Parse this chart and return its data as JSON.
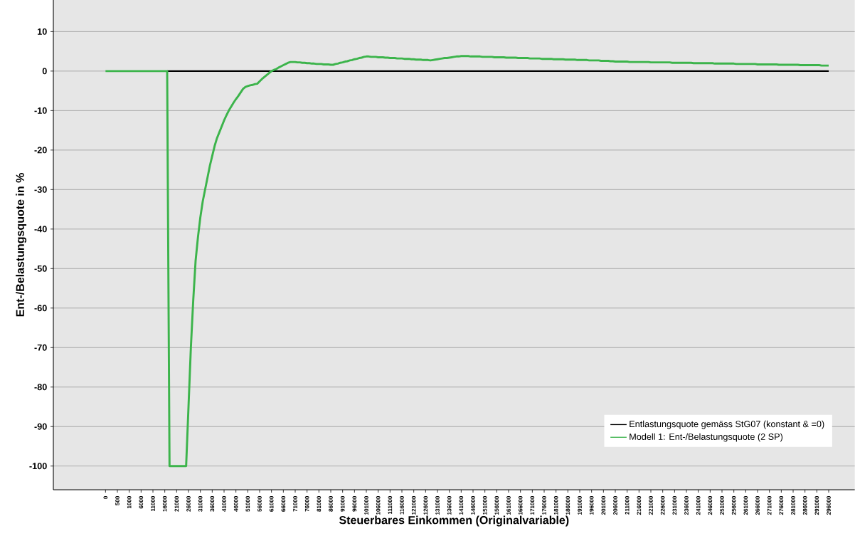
{
  "chart_data": {
    "type": "line",
    "xlabel": "Steuerbares Einkommen (Originalvariable)",
    "ylabel": "Ent-/Belastungsquote in %",
    "categories": [
      "0",
      null,
      null,
      null,
      null,
      "500",
      null,
      null,
      null,
      null,
      "1000",
      null,
      null,
      null,
      null,
      "6000",
      null,
      null,
      null,
      null,
      "11000",
      null,
      null,
      null,
      null,
      "16000",
      null,
      null,
      null,
      null,
      "21000",
      null,
      null,
      null,
      null,
      "26000",
      null,
      null,
      null,
      null,
      "31000",
      null,
      null,
      null,
      null,
      "36000",
      null,
      null,
      null,
      null,
      "41000",
      null,
      null,
      null,
      null,
      "46000",
      null,
      null,
      null,
      null,
      "51000",
      null,
      null,
      null,
      null,
      "56000",
      null,
      null,
      null,
      null,
      "61000",
      null,
      null,
      null,
      null,
      "66000",
      null,
      null,
      null,
      null,
      "71000",
      null,
      null,
      null,
      null,
      "76000",
      null,
      null,
      null,
      null,
      "81000",
      null,
      null,
      null,
      null,
      "86000",
      null,
      null,
      null,
      null,
      "91000",
      null,
      null,
      null,
      null,
      "96000",
      null,
      null,
      null,
      null,
      "101000",
      null,
      null,
      null,
      null,
      "106000",
      null,
      null,
      null,
      null,
      "111000",
      null,
      null,
      null,
      null,
      "116000",
      null,
      null,
      null,
      null,
      "121000",
      null,
      null,
      null,
      null,
      "126000",
      null,
      null,
      null,
      null,
      "131000",
      null,
      null,
      null,
      null,
      "136000",
      null,
      null,
      null,
      null,
      "141000",
      null,
      null,
      null,
      null,
      "146000",
      null,
      null,
      null,
      null,
      "151000",
      null,
      null,
      null,
      null,
      "156000",
      null,
      null,
      null,
      null,
      "161000",
      null,
      null,
      null,
      null,
      "166000",
      null,
      null,
      null,
      null,
      "171000",
      null,
      null,
      null,
      null,
      "176000",
      null,
      null,
      null,
      null,
      "181000",
      null,
      null,
      null,
      null,
      "186000",
      null,
      null,
      null,
      null,
      "191000",
      null,
      null,
      null,
      null,
      "196000",
      null,
      null,
      null,
      null,
      "201000",
      null,
      null,
      null,
      null,
      "206000",
      null,
      null,
      null,
      null,
      "211000",
      null,
      null,
      null,
      null,
      "216000",
      null,
      null,
      null,
      null,
      "221000",
      null,
      null,
      null,
      null,
      "226000",
      null,
      null,
      null,
      null,
      "231000",
      null,
      null,
      null,
      null,
      "236000",
      null,
      null,
      null,
      null,
      "241000",
      null,
      null,
      null,
      null,
      "246000",
      null,
      null,
      null,
      null,
      "251000",
      null,
      null,
      null,
      null,
      "256000",
      null,
      null,
      null,
      null,
      "261000",
      null,
      null,
      null,
      null,
      "266000",
      null,
      null,
      null,
      null,
      "271000",
      null,
      null,
      null,
      null,
      "276000",
      null,
      null,
      null,
      null,
      "281000",
      null,
      null,
      null,
      null,
      "286000",
      null,
      null,
      null,
      null,
      "291000",
      null,
      null,
      null,
      null,
      "296000"
    ],
    "series": [
      {
        "name": "Entlastungsquote gemäss StG07 (konstant & =0)",
        "color": "#000000",
        "values": [
          null,
          null,
          null,
          null,
          null,
          null,
          null,
          null,
          null,
          null,
          null,
          null,
          null,
          null,
          null,
          null,
          null,
          null,
          null,
          null,
          null,
          null,
          null,
          null,
          null,
          null,
          0,
          0,
          0,
          0,
          0,
          0,
          0,
          0,
          0,
          0,
          0,
          0,
          0,
          0,
          0,
          0,
          0,
          0,
          0,
          0,
          0,
          0,
          0,
          0,
          0,
          0,
          0,
          0,
          0,
          0,
          0,
          0,
          0,
          0,
          0,
          0,
          0,
          0,
          0,
          0,
          0,
          0,
          0,
          0,
          0,
          0,
          0,
          0,
          0,
          0,
          0,
          0,
          0,
          0,
          0,
          0,
          0,
          0,
          0,
          0,
          0,
          0,
          0,
          0,
          0,
          0,
          0,
          0,
          0,
          0,
          0,
          0,
          0,
          0,
          0,
          0,
          0,
          0,
          0,
          0,
          0,
          0,
          0,
          0,
          0,
          0,
          0,
          0,
          0,
          0,
          0,
          0,
          0,
          0,
          0,
          0,
          0,
          0,
          0,
          0,
          0,
          0,
          0,
          0,
          0,
          0,
          0,
          0,
          0,
          0,
          0,
          0,
          0,
          0,
          0,
          0,
          0,
          0,
          0,
          0,
          0,
          0,
          0,
          0,
          0,
          0,
          0,
          0,
          0,
          0,
          0,
          0,
          0,
          0,
          0,
          0,
          0,
          0,
          0,
          0,
          0,
          0,
          0,
          0,
          0,
          0,
          0,
          0,
          0,
          0,
          0,
          0,
          0,
          0,
          0,
          0,
          0,
          0,
          0,
          0,
          0,
          0,
          0,
          0,
          0,
          0,
          0,
          0,
          0,
          0,
          0,
          0,
          0,
          0,
          0,
          0,
          0,
          0,
          0,
          0,
          0,
          0,
          0,
          0,
          0,
          0,
          0,
          0,
          0,
          0,
          0,
          0,
          0,
          0,
          0,
          0,
          0,
          0,
          0,
          0,
          0,
          0,
          0,
          0,
          0,
          0,
          0,
          0,
          0,
          0,
          0,
          0,
          0,
          0,
          0,
          0,
          0,
          0,
          0,
          0,
          0,
          0,
          0,
          0,
          0,
          0,
          0,
          0,
          0,
          0,
          0,
          0,
          0,
          0,
          0,
          0,
          0,
          0,
          0,
          0,
          0,
          0,
          0,
          0,
          0,
          0,
          0,
          0,
          0,
          0,
          0,
          0,
          0,
          0,
          0,
          0,
          0,
          0,
          0,
          0,
          0,
          0,
          0,
          0,
          0,
          0,
          0,
          0,
          0,
          0,
          0,
          0,
          0,
          0,
          0,
          0,
          0,
          0,
          0,
          0
        ]
      },
      {
        "name": "Modell 1: Ent-/Belastungsquote (2 SP)",
        "color": "#3cb44b",
        "values": [
          0,
          0,
          0,
          0,
          0,
          0,
          0,
          0,
          0,
          0,
          0,
          0,
          0,
          0,
          0,
          0,
          0,
          0,
          0,
          0,
          0,
          0,
          0,
          0,
          0,
          0,
          0,
          -100,
          -100,
          -100,
          -100,
          -100,
          -100,
          -100,
          -100,
          -85,
          -70,
          -58,
          -48,
          -42,
          -37,
          -33,
          -30,
          -27,
          -24,
          -21.5,
          -19,
          -17,
          -15.5,
          -14,
          -12.5,
          -11.2,
          -10,
          -9,
          -8,
          -7.1,
          -6.3,
          -5.4,
          -4.5,
          -4,
          -3.8,
          -3.6,
          -3.5,
          -3.3,
          -3.2,
          -2.6,
          -2,
          -1.5,
          -1,
          -0.5,
          0,
          0.3,
          0.5,
          0.9,
          1.2,
          1.5,
          1.8,
          2.1,
          2.3,
          2.3,
          2.3,
          2.2,
          2.2,
          2.1,
          2.1,
          2.0,
          2.0,
          1.9,
          1.9,
          1.8,
          1.8,
          1.8,
          1.7,
          1.7,
          1.7,
          1.6,
          1.6,
          1.8,
          1.9,
          2.1,
          2.2,
          2.4,
          2.5,
          2.7,
          2.8,
          3.0,
          3.1,
          3.3,
          3.4,
          3.6,
          3.7,
          3.7,
          3.6,
          3.6,
          3.6,
          3.5,
          3.5,
          3.5,
          3.4,
          3.4,
          3.3,
          3.3,
          3.3,
          3.2,
          3.2,
          3.2,
          3.1,
          3.1,
          3.1,
          3.0,
          3.0,
          2.9,
          2.9,
          2.9,
          2.8,
          2.8,
          2.8,
          2.7,
          2.8,
          2.9,
          3.0,
          3.1,
          3.2,
          3.3,
          3.3,
          3.4,
          3.5,
          3.6,
          3.7,
          3.7,
          3.8,
          3.8,
          3.8,
          3.8,
          3.7,
          3.7,
          3.7,
          3.7,
          3.7,
          3.6,
          3.6,
          3.6,
          3.6,
          3.6,
          3.5,
          3.5,
          3.5,
          3.5,
          3.5,
          3.4,
          3.4,
          3.4,
          3.4,
          3.4,
          3.3,
          3.3,
          3.3,
          3.3,
          3.3,
          3.2,
          3.2,
          3.2,
          3.2,
          3.2,
          3.1,
          3.1,
          3.1,
          3.1,
          3.1,
          3.0,
          3.0,
          3.0,
          3.0,
          3.0,
          2.9,
          2.9,
          2.9,
          2.9,
          2.9,
          2.8,
          2.8,
          2.8,
          2.8,
          2.8,
          2.7,
          2.7,
          2.7,
          2.7,
          2.7,
          2.6,
          2.6,
          2.6,
          2.6,
          2.5,
          2.5,
          2.4,
          2.4,
          2.4,
          2.4,
          2.4,
          2.4,
          2.3,
          2.3,
          2.3,
          2.3,
          2.3,
          2.3,
          2.3,
          2.3,
          2.3,
          2.2,
          2.2,
          2.2,
          2.2,
          2.2,
          2.2,
          2.2,
          2.2,
          2.2,
          2.1,
          2.1,
          2.1,
          2.1,
          2.1,
          2.1,
          2.1,
          2.1,
          2.1,
          2.0,
          2.0,
          2.0,
          2.0,
          2.0,
          2.0,
          2.0,
          2.0,
          2.0,
          1.9,
          1.9,
          1.9,
          1.9,
          1.9,
          1.9,
          1.9,
          1.9,
          1.9,
          1.8,
          1.8,
          1.8,
          1.8,
          1.8,
          1.8,
          1.8,
          1.8,
          1.8,
          1.7,
          1.7,
          1.7,
          1.7,
          1.7,
          1.7,
          1.7,
          1.7,
          1.7,
          1.6,
          1.6,
          1.6,
          1.6,
          1.6,
          1.6,
          1.6,
          1.6,
          1.6,
          1.5,
          1.5,
          1.5,
          1.5,
          1.5,
          1.5,
          1.5,
          1.5,
          1.5,
          1.4,
          1.4,
          1.4,
          1.4
        ]
      }
    ],
    "ylim": [
      -106,
      18
    ],
    "yticks": [
      -100,
      -90,
      -80,
      -70,
      -60,
      -50,
      -40,
      -30,
      -20,
      -10,
      0,
      10
    ],
    "grid": "y",
    "legend": "bottom right",
    "marker": "none",
    "line_style": "solid"
  }
}
